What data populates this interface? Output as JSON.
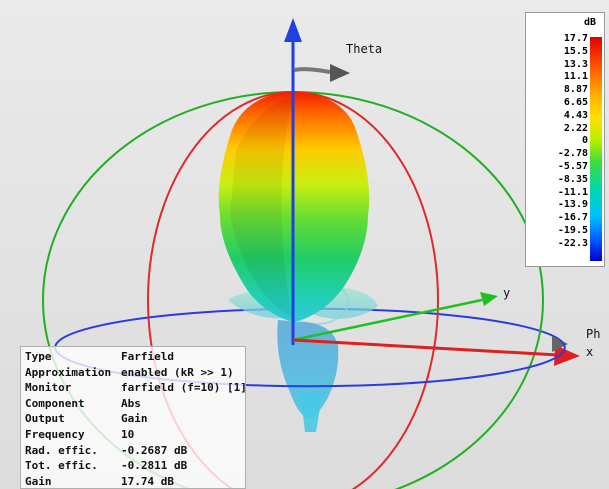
{
  "axes": {
    "theta": "Theta",
    "y": "y",
    "phi": "Ph",
    "x": "x"
  },
  "legend": {
    "unit": "dB",
    "ticks": [
      "17.7",
      "15.5",
      "13.3",
      "11.1",
      "8.87",
      "6.65",
      "4.43",
      "2.22",
      "0",
      "-2.78",
      "-5.57",
      "-8.35",
      "-11.1",
      "-13.9",
      "-16.7",
      "-19.5",
      "-22.3"
    ]
  },
  "properties": [
    {
      "key": "Type",
      "value": "Farfield"
    },
    {
      "key": "Approximation",
      "value": "enabled (kR >> 1)"
    },
    {
      "key": "Monitor",
      "value": "farfield (f=10) [1]"
    },
    {
      "key": "Component",
      "value": "Abs"
    },
    {
      "key": "Output",
      "value": "Gain"
    },
    {
      "key": "Frequency",
      "value": "10"
    },
    {
      "key": "Rad. effic.",
      "value": "-0.2687 dB"
    },
    {
      "key": "Tot. effic.",
      "value": "-0.2811 dB"
    },
    {
      "key": "Gain",
      "value": "17.74 dB"
    }
  ],
  "colors": {
    "theta_axis": "#2040e0",
    "x_axis": "#e02020",
    "y_axis": "#20c020",
    "green_circle": "#22b022",
    "red_circle": "#e02a2a",
    "blue_circle": "#2a3ce0"
  }
}
